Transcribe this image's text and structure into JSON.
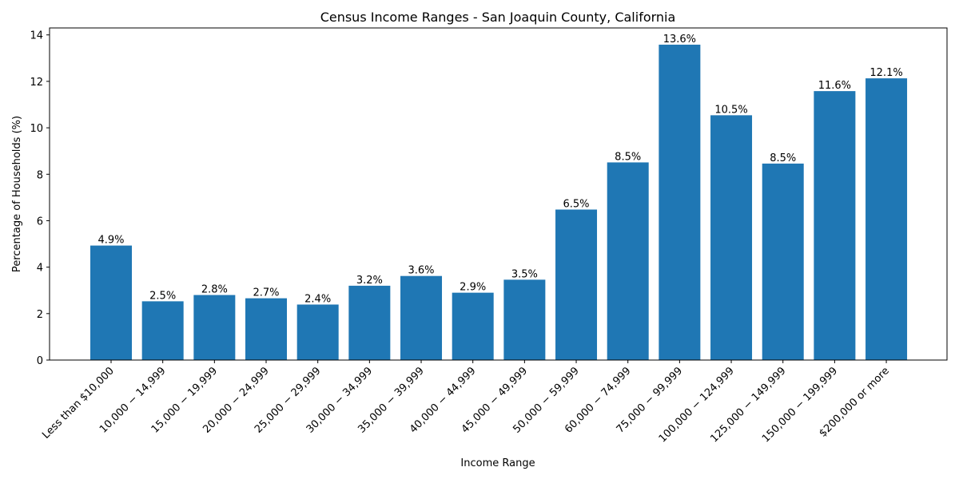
{
  "chart_data": {
    "type": "bar",
    "title": "Census Income Ranges - San Joaquin County, California",
    "xlabel": "Income Range",
    "ylabel": "Percentage of Households (%)",
    "categories": [
      "Less than $10,000",
      "10,000 − 14,999",
      "15,000 − 19,999",
      "20,000 − 24,999",
      "25,000 − 29,999",
      "30,000 − 34,999",
      "35,000 − 39,999",
      "40,000 − 44,999",
      "45,000 − 49,999",
      "50,000 − 59,999",
      "60,000 − 74,999",
      "75,000 − 99,999",
      "100,000 − 124,999",
      "125,000 − 149,999",
      "150,000 − 199,999",
      "$200,000 or more"
    ],
    "values": [
      4.93,
      2.53,
      2.8,
      2.66,
      2.39,
      3.2,
      3.62,
      2.9,
      3.46,
      6.48,
      8.51,
      13.58,
      10.54,
      8.46,
      11.58,
      12.13
    ],
    "data_labels": [
      "4.9%",
      "2.5%",
      "2.8%",
      "2.7%",
      "2.4%",
      "3.2%",
      "3.6%",
      "2.9%",
      "3.5%",
      "6.5%",
      "8.5%",
      "13.6%",
      "10.5%",
      "8.5%",
      "11.6%",
      "12.1%"
    ],
    "ylim": [
      0,
      14.3
    ],
    "yticks": [
      0,
      2,
      4,
      6,
      8,
      10,
      12,
      14
    ],
    "bar_color": "#1f77b4",
    "grid": false,
    "legend": "none"
  }
}
